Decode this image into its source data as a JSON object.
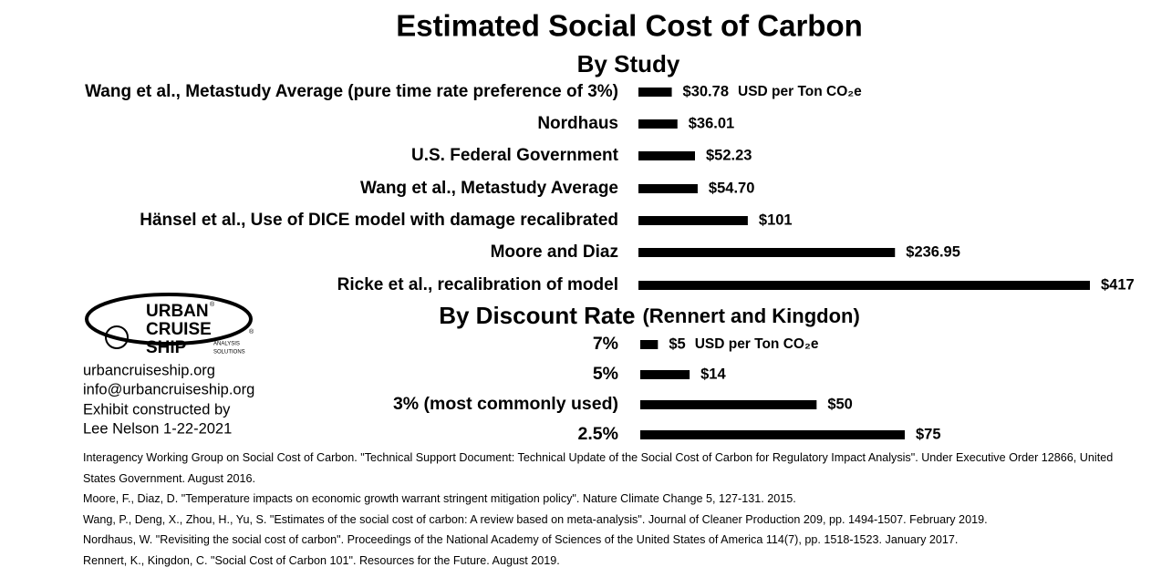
{
  "chart_data": [
    {
      "type": "bar",
      "title": "Estimated Social Cost of Carbon",
      "subtitle": "By Study",
      "categories": [
        "Wang et al., Metastudy Average (pure time rate preference of 3%)",
        "Nordhaus",
        "U.S. Federal Government",
        "Wang et al., Metastudy Average",
        "Hänsel et al., Use of DICE model with damage recalibrated",
        "Moore and Diaz",
        "Ricke et al., recalibration of model"
      ],
      "values": [
        30.78,
        36.01,
        52.23,
        54.7,
        101,
        236.95,
        417
      ],
      "value_labels": [
        "$30.78",
        "$36.01",
        "$52.23",
        "$54.70",
        "$101",
        "$236.95",
        "$417"
      ],
      "unit_label": "USD per Ton CO₂e",
      "color": "#000000"
    },
    {
      "type": "bar",
      "title": "By Discount Rate",
      "subtitle": "(Rennert and Kingdon)",
      "categories": [
        "7%",
        "5%",
        "3% (most commonly used)",
        "2.5%"
      ],
      "values": [
        5,
        14,
        50,
        75
      ],
      "value_labels": [
        "$5",
        "$14",
        "$50",
        "$75"
      ],
      "unit_label": "USD per Ton CO₂e",
      "color": "#000000"
    }
  ],
  "logo": {
    "lines": [
      "URBAN",
      "CRUISE",
      "SHIP"
    ],
    "tagline": [
      "ANALYSIS",
      "SOLUTIONS"
    ],
    "mark": "®"
  },
  "contact": [
    "urbancruiseship.org",
    "info@urbancruiseship.org",
    "Exhibit constructed by",
    "Lee Nelson 1-22-2021"
  ],
  "references": [
    "Interagency Working Group on Social Cost of Carbon. \"Technical Support Document: Technical Update of the Social Cost of Carbon for Regulatory Impact Analysis\". Under Executive Order 12866, United States Government. August 2016.",
    "Moore, F., Diaz, D. \"Temperature impacts on economic growth warrant stringent mitigation policy\". Nature Climate Change 5, 127-131. 2015.",
    "Wang, P., Deng, X., Zhou, H., Yu, S. \"Estimates of the social cost of carbon: A review based on meta-analysis\". Journal of Cleaner Production 209, pp. 1494-1507. February 2019.",
    "Nordhaus, W. \"Revisiting the social cost of carbon\". Proceedings of the National Academy of Sciences of the United States of America 114(7), pp. 1518-1523. January 2017.",
    "Rennert, K., Kingdon, C. \"Social Cost of Carbon 101\". Resources for the Future. August 2019."
  ]
}
